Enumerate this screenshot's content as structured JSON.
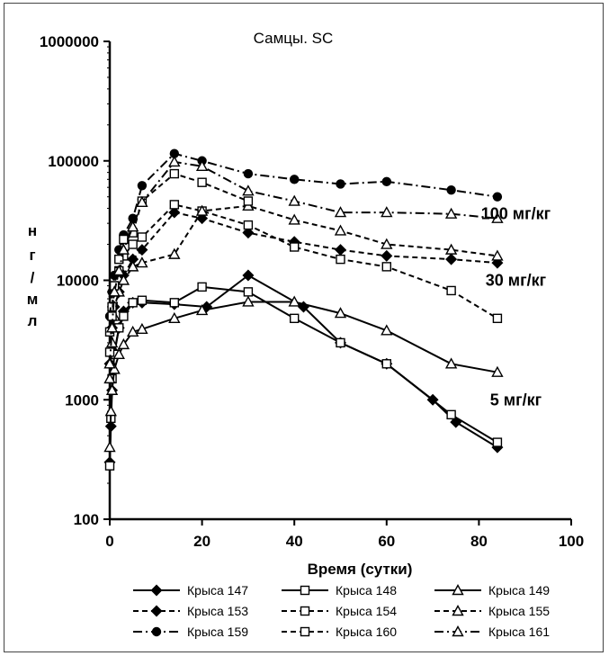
{
  "chart_data": {
    "type": "line",
    "title": "Самцы. SC",
    "xlabel": "Время (сутки)",
    "ylabel": [
      "н",
      "г",
      "/",
      "м",
      "л"
    ],
    "xlim": [
      0,
      100
    ],
    "ylim": [
      100,
      1000000
    ],
    "yscale": "log",
    "xticks": [
      0,
      20,
      40,
      60,
      80,
      100
    ],
    "yticks": [
      100,
      1000,
      10000,
      100000,
      1000000
    ],
    "ytick_labels": [
      "100",
      "1000",
      "10000",
      "100000",
      "1000000"
    ],
    "grid": false,
    "legend_position": "bottom",
    "annotations": [
      {
        "text": "100 мг/кг",
        "x": 88,
        "y": 36000
      },
      {
        "text": "30 мг/кг",
        "x": 88,
        "y": 10000
      },
      {
        "text": "5 мг/кг",
        "x": 88,
        "y": 1000
      }
    ],
    "series": [
      {
        "name": "Крыса 147",
        "line": "solid",
        "marker": "diamond",
        "fill": true,
        "x": [
          0,
          0.25,
          0.5,
          1,
          2,
          3,
          5,
          7,
          14,
          21,
          30,
          42,
          50,
          60,
          70,
          75,
          84
        ],
        "y": [
          300,
          600,
          1200,
          2500,
          4000,
          5500,
          6500,
          6500,
          6300,
          6000,
          11000,
          6000,
          3000,
          2000,
          1000,
          650,
          400
        ]
      },
      {
        "name": "Крыса 148",
        "line": "solid",
        "marker": "square",
        "fill": false,
        "x": [
          0,
          0.25,
          0.5,
          1,
          2,
          3,
          5,
          7,
          14,
          20,
          30,
          40,
          50,
          60,
          74,
          84
        ],
        "y": [
          280,
          700,
          1500,
          2400,
          4000,
          5000,
          6500,
          6800,
          6500,
          8800,
          8000,
          4800,
          3000,
          2000,
          750,
          440
        ]
      },
      {
        "name": "Крыса 149",
        "line": "solid",
        "marker": "triangle",
        "fill": false,
        "x": [
          0,
          0.25,
          0.5,
          1,
          2,
          3,
          5,
          7,
          14,
          20,
          30,
          40,
          50,
          60,
          74,
          84
        ],
        "y": [
          400,
          800,
          1200,
          1800,
          2400,
          2900,
          3700,
          3900,
          4800,
          5600,
          6600,
          6600,
          5300,
          3800,
          2000,
          1700
        ]
      },
      {
        "name": "Крыса 153",
        "line": "dash",
        "marker": "diamond",
        "fill": true,
        "x": [
          0,
          0.5,
          1,
          2,
          3,
          5,
          7,
          14,
          20,
          30,
          40,
          50,
          60,
          74,
          84
        ],
        "y": [
          2000,
          4000,
          6000,
          8000,
          11000,
          15000,
          18000,
          37000,
          33000,
          25000,
          21000,
          18000,
          16000,
          15000,
          14000
        ]
      },
      {
        "name": "Крыса 154",
        "line": "dash",
        "marker": "square",
        "fill": false,
        "x": [
          0,
          0.5,
          1,
          2,
          3,
          5,
          7,
          14,
          20,
          30,
          40,
          50,
          60,
          74,
          84
        ],
        "y": [
          3700,
          6000,
          9000,
          12000,
          16000,
          20000,
          23000,
          43000,
          38000,
          29000,
          19000,
          15000,
          13000,
          8200,
          4800
        ]
      },
      {
        "name": "Крыса 155",
        "line": "dash",
        "marker": "triangle",
        "fill": false,
        "x": [
          0,
          0.5,
          1,
          2,
          3,
          5,
          7,
          14,
          20,
          30,
          40,
          50,
          60,
          74,
          84
        ],
        "y": [
          1500,
          3000,
          5000,
          8000,
          10000,
          13000,
          14000,
          16500,
          38000,
          42000,
          32000,
          26000,
          20000,
          18000,
          16000
        ]
      },
      {
        "name": "Крыса 159",
        "line": "dashdot",
        "marker": "circle",
        "fill": true,
        "x": [
          0,
          0.5,
          1,
          2,
          3,
          5,
          7,
          14,
          20,
          30,
          40,
          50,
          60,
          74,
          84
        ],
        "y": [
          5000,
          8000,
          11000,
          18000,
          24000,
          33000,
          62000,
          115000,
          100000,
          78000,
          70000,
          64000,
          67000,
          57000,
          50000
        ]
      },
      {
        "name": "Крыса 160",
        "line": "dash",
        "marker": "square",
        "fill": false,
        "x": [
          0,
          0.5,
          1,
          2,
          3,
          5,
          7,
          14,
          20,
          30
        ],
        "y": [
          2500,
          5000,
          9000,
          15000,
          22000,
          25000,
          46000,
          78000,
          66000,
          46000
        ]
      },
      {
        "name": "Крыса 161",
        "line": "dashdot",
        "marker": "triangle",
        "fill": false,
        "x": [
          0,
          0.5,
          1,
          2,
          3,
          5,
          7,
          14,
          20,
          30,
          40,
          50,
          60,
          74,
          84
        ],
        "y": [
          2000,
          4000,
          8000,
          12000,
          18000,
          28000,
          45000,
          98000,
          90000,
          56000,
          46000,
          37000,
          37000,
          36000,
          33000
        ]
      }
    ]
  }
}
